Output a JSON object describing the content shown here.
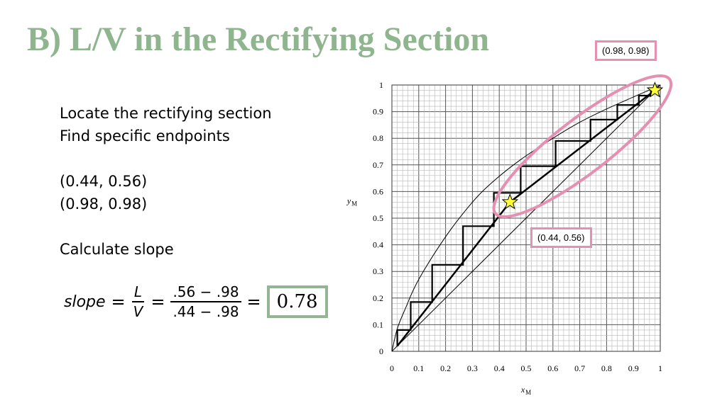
{
  "title": "B) L/V in the Rectifying Section",
  "text": {
    "line1": "Locate the rectifying section",
    "line2": "Find specific endpoints",
    "point1": "(0.44, 0.56)",
    "point2": "(0.98, 0.98)",
    "line3": "Calculate slope"
  },
  "equation": {
    "lhs": "slope",
    "eq1": "=",
    "num1": "L",
    "den1": "V",
    "eq2": "=",
    "num2": ".56 − .98",
    "den2": ".44 − .98",
    "eq3": "=",
    "result": "0.78"
  },
  "callouts": {
    "top": "(0.98, 0.98)",
    "mid": "(0.44, 0.56)"
  },
  "colors": {
    "title": "#8fb58f",
    "result_border": "#93b593",
    "highlight": "#e58fb3",
    "star": "#ffff33"
  },
  "chart_data": {
    "type": "line",
    "xlabel": "x_M",
    "ylabel": "y_M",
    "xlim": [
      0,
      1
    ],
    "ylim": [
      0,
      1
    ],
    "grid": true,
    "x_ticks": [
      "0",
      "0.1",
      "0.2",
      "0.3",
      "0.4",
      "0.5",
      "0.6",
      "0.7",
      "0.8",
      "0.9",
      "1"
    ],
    "y_ticks": [
      "0",
      "0.1",
      "0.2",
      "0.3",
      "0.4",
      "0.5",
      "0.6",
      "0.7",
      "0.8",
      "0.9",
      "1"
    ],
    "equilibrium_curve": [
      [
        0,
        0
      ],
      [
        0.02,
        0.085
      ],
      [
        0.05,
        0.16
      ],
      [
        0.1,
        0.27
      ],
      [
        0.2,
        0.43
      ],
      [
        0.3,
        0.56
      ],
      [
        0.38,
        0.64
      ],
      [
        0.48,
        0.72
      ],
      [
        0.6,
        0.8
      ],
      [
        0.7,
        0.86
      ],
      [
        0.8,
        0.91
      ],
      [
        0.9,
        0.955
      ],
      [
        0.98,
        0.99
      ],
      [
        1,
        1
      ]
    ],
    "diagonal": [
      [
        0,
        0
      ],
      [
        1,
        1
      ]
    ],
    "operating_line": [
      [
        0.02,
        0.02
      ],
      [
        0.44,
        0.56
      ],
      [
        0.98,
        0.98
      ]
    ],
    "stages": [
      [
        0.02,
        0.02
      ],
      [
        0.02,
        0.08
      ],
      [
        0.07,
        0.08
      ],
      [
        0.07,
        0.185
      ],
      [
        0.15,
        0.185
      ],
      [
        0.15,
        0.325
      ],
      [
        0.265,
        0.325
      ],
      [
        0.265,
        0.47
      ],
      [
        0.38,
        0.47
      ],
      [
        0.38,
        0.595
      ],
      [
        0.48,
        0.595
      ],
      [
        0.48,
        0.695
      ],
      [
        0.61,
        0.695
      ],
      [
        0.61,
        0.79
      ],
      [
        0.74,
        0.79
      ],
      [
        0.74,
        0.87
      ],
      [
        0.84,
        0.87
      ],
      [
        0.84,
        0.925
      ],
      [
        0.92,
        0.925
      ],
      [
        0.92,
        0.96
      ],
      [
        0.965,
        0.96
      ],
      [
        0.965,
        0.98
      ]
    ],
    "points": [
      [
        0.44,
        0.56
      ],
      [
        0.98,
        0.98
      ]
    ],
    "highlight_region": {
      "from": [
        0.44,
        0.56
      ],
      "to": [
        0.98,
        0.98
      ]
    }
  }
}
